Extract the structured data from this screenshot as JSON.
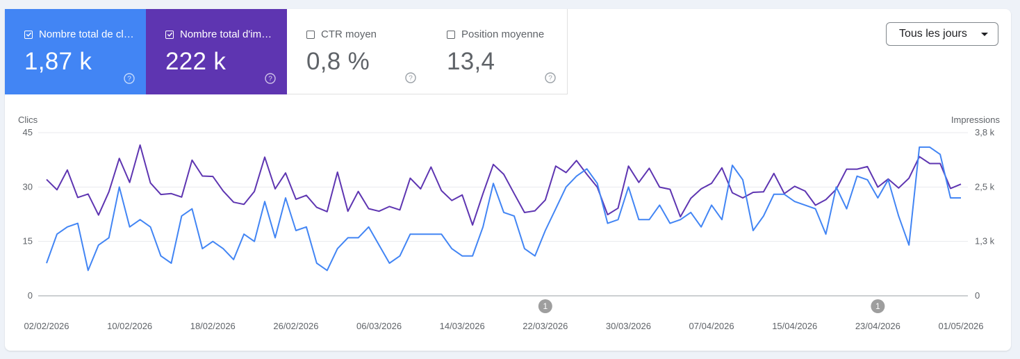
{
  "metrics": [
    {
      "label": "Nombre total de clics",
      "value": "1,87 k",
      "checked": true
    },
    {
      "label": "Nombre total d'impressions",
      "value": "222 k",
      "checked": true
    },
    {
      "label": "CTR moyen",
      "value": "0,8 %",
      "checked": false
    },
    {
      "label": "Position moyenne",
      "value": "13,4",
      "checked": false
    }
  ],
  "dropdown": {
    "label": "Tous les jours"
  },
  "colors": {
    "clicks": "#4285f4",
    "impressions": "#5e35b1"
  },
  "chart_data": {
    "type": "line",
    "ylabel_left": "Clics",
    "ylabel_right": "Impressions",
    "left_ticks": [
      "45",
      "30",
      "15",
      "0"
    ],
    "right_ticks": [
      "3,8 k",
      "2,5 k",
      "1,3 k",
      "0"
    ],
    "left_range": [
      0,
      45
    ],
    "right_range": [
      0,
      3800
    ],
    "x_ticks": [
      "02/02/2026",
      "10/02/2026",
      "18/02/2026",
      "26/02/2026",
      "06/03/2026",
      "14/03/2026",
      "22/03/2026",
      "30/03/2026",
      "07/04/2026",
      "15/04/2026",
      "23/04/2026",
      "01/05/2026"
    ],
    "x_start": "2026-02-02",
    "annotations": [
      {
        "date": "2026-03-22",
        "label": "1"
      },
      {
        "date": "2026-04-23",
        "label": "1"
      }
    ],
    "series": [
      {
        "name": "Clics",
        "axis": "left",
        "values": [
          9,
          17,
          19,
          20,
          7,
          14,
          16,
          30,
          19,
          21,
          19,
          11,
          9,
          22,
          24,
          13,
          15,
          13,
          10,
          17,
          15,
          26,
          16,
          27,
          18,
          19,
          9,
          7,
          13,
          16,
          16,
          19,
          14,
          9,
          11,
          17,
          17,
          17,
          17,
          13,
          11,
          11,
          19,
          31,
          23,
          22,
          13,
          11,
          18,
          24,
          30,
          33,
          35,
          31,
          20,
          21,
          30,
          21,
          21,
          25,
          20,
          21,
          23,
          19,
          25,
          21,
          36,
          32,
          18,
          22,
          28,
          28,
          26,
          25,
          24,
          17,
          30,
          24,
          33,
          32,
          27,
          32,
          22,
          14,
          41,
          41,
          39,
          27,
          27
        ]
      },
      {
        "name": "Impressions",
        "axis": "right",
        "values": [
          2710,
          2470,
          2930,
          2290,
          2370,
          1880,
          2420,
          3200,
          2640,
          3510,
          2630,
          2360,
          2380,
          2300,
          3160,
          2790,
          2780,
          2440,
          2180,
          2130,
          2430,
          3230,
          2490,
          2860,
          2250,
          2340,
          2060,
          1960,
          2880,
          1970,
          2430,
          2030,
          1970,
          2080,
          2000,
          2740,
          2490,
          3000,
          2450,
          2220,
          2350,
          1650,
          2380,
          3060,
          2830,
          2380,
          1940,
          1980,
          2230,
          3020,
          2870,
          3150,
          2830,
          2530,
          1890,
          2040,
          3020,
          2640,
          2970,
          2530,
          2480,
          1840,
          2270,
          2490,
          2620,
          2980,
          2400,
          2280,
          2410,
          2420,
          2850,
          2380,
          2550,
          2440,
          2110,
          2240,
          2480,
          2950,
          2950,
          3010,
          2530,
          2720,
          2510,
          2740,
          3240,
          3080,
          3080,
          2500,
          2600
        ]
      }
    ]
  }
}
